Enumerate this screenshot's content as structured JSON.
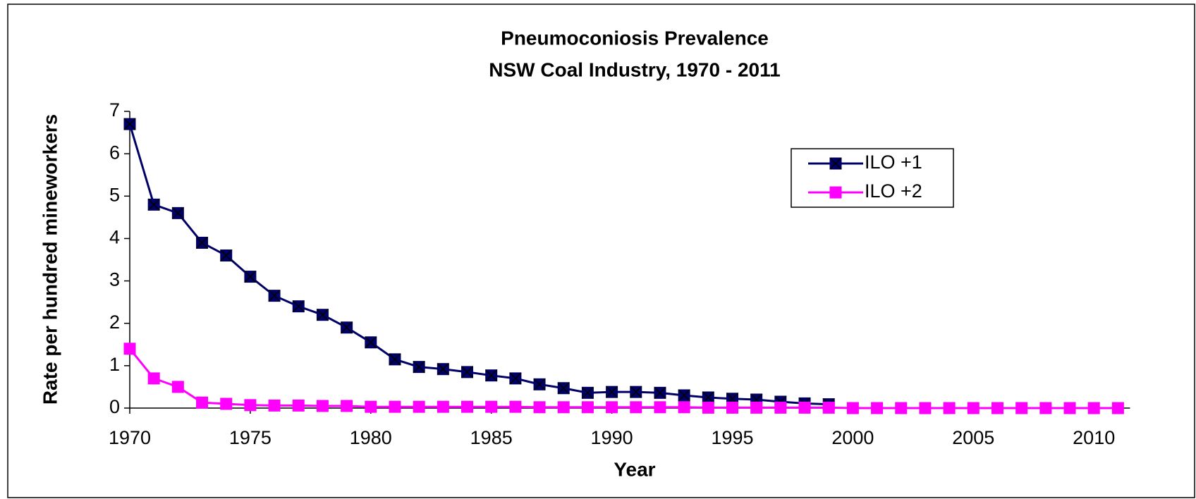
{
  "chart_data": {
    "type": "line",
    "title": "Pneumoconiosis Prevalence",
    "subtitle": "NSW Coal Industry, 1970 - 2011",
    "x_label": "Year",
    "y_label": "Rate per hundred mineworkers",
    "x": [
      1970,
      1971,
      1972,
      1973,
      1974,
      1975,
      1976,
      1977,
      1978,
      1979,
      1980,
      1981,
      1982,
      1983,
      1984,
      1985,
      1986,
      1987,
      1988,
      1989,
      1990,
      1991,
      1992,
      1993,
      1994,
      1995,
      1996,
      1997,
      1998,
      1999,
      2000,
      2001,
      2002,
      2003,
      2004,
      2005,
      2006,
      2007,
      2008,
      2009,
      2010,
      2011
    ],
    "series": [
      {
        "name": "ILO +1",
        "color": "#000066",
        "values": [
          6.7,
          4.8,
          4.6,
          3.9,
          3.6,
          3.1,
          2.65,
          2.4,
          2.2,
          1.9,
          1.55,
          1.15,
          0.97,
          0.92,
          0.85,
          0.77,
          0.7,
          0.56,
          0.47,
          0.36,
          0.38,
          0.38,
          0.36,
          0.3,
          0.25,
          0.22,
          0.2,
          0.15,
          0.11,
          0.09,
          null,
          null,
          null,
          null,
          null,
          null,
          null,
          null,
          null,
          null,
          null,
          null
        ]
      },
      {
        "name": "ILO +2",
        "color": "#ff00ff",
        "values": [
          1.4,
          0.7,
          0.5,
          0.13,
          0.1,
          0.07,
          0.06,
          0.06,
          0.05,
          0.05,
          0.03,
          0.03,
          0.03,
          0.03,
          0.03,
          0.03,
          0.03,
          0.02,
          0.02,
          0.02,
          0.02,
          0.02,
          0.02,
          0.02,
          0.01,
          0.01,
          0.01,
          0.01,
          0.01,
          0.01,
          0,
          0,
          0,
          0,
          0,
          0,
          0,
          0,
          0,
          0,
          0,
          0
        ]
      }
    ],
    "xlim": [
      1970,
      2011.5
    ],
    "xticks": [
      1970,
      1975,
      1980,
      1985,
      1990,
      1995,
      2000,
      2005,
      2010
    ],
    "ylim": [
      0,
      7
    ],
    "yticks": [
      0,
      1,
      2,
      3,
      4,
      5,
      6,
      7
    ],
    "legend": "upper right"
  }
}
